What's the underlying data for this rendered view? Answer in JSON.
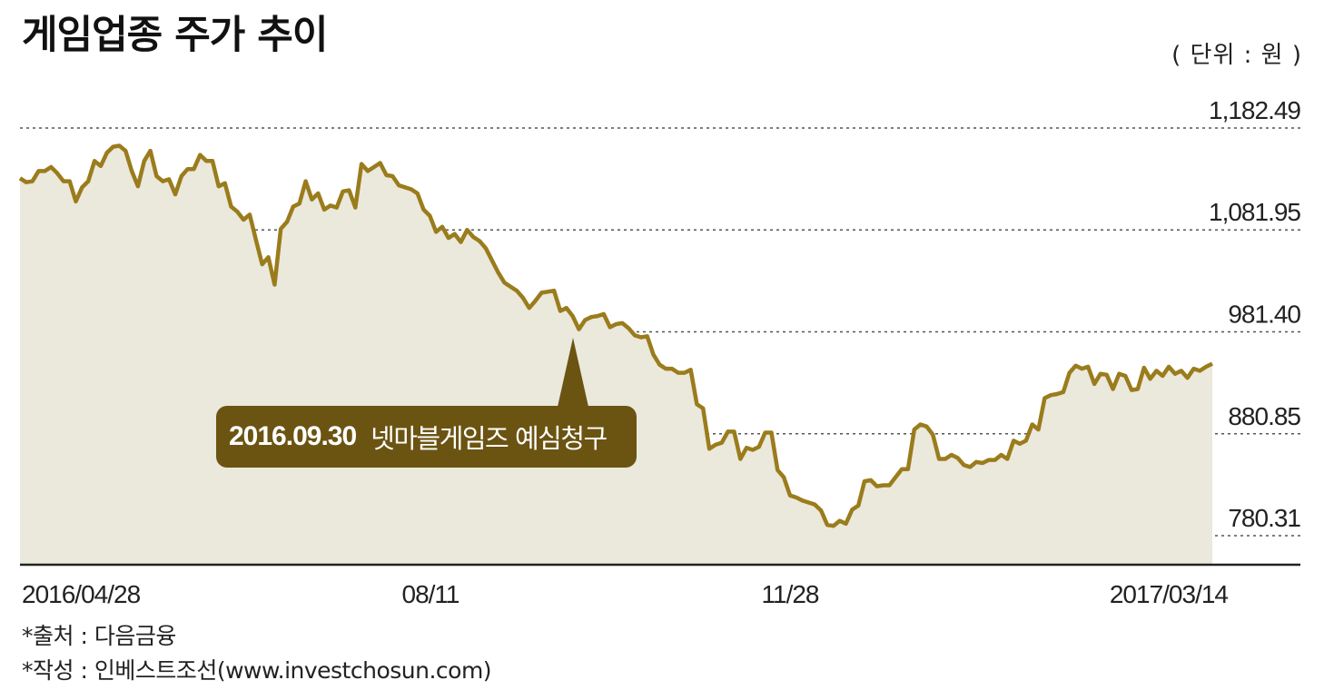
{
  "title": "게임업종 주가 추이",
  "unit": "( 단위 : 원 )",
  "annotation": {
    "date": "2016.09.30",
    "text": "넷마블게임즈 예심청구"
  },
  "footnotes": {
    "source": "*출처 : 다음금융",
    "author": "*작성 : 인베스트조선(www.investchosun.com)"
  },
  "colors": {
    "line": "#9a7c1c",
    "area": "#ebe8dc",
    "callout": "#6b5412"
  },
  "chart_data": {
    "type": "area",
    "ylim": [
      780.31,
      1182.49
    ],
    "yticks": [
      {
        "value": 1182.49,
        "label": "1,182.49"
      },
      {
        "value": 1081.95,
        "label": "1,081.95"
      },
      {
        "value": 981.4,
        "label": "981.40"
      },
      {
        "value": 880.85,
        "label": "880.85"
      },
      {
        "value": 780.31,
        "label": "780.31"
      }
    ],
    "xticks": [
      "2016/04/28",
      "08/11",
      "11/28",
      "2017/03/14"
    ],
    "x_start": "2016-04-28",
    "x_end": "2017-03-14",
    "grid": true,
    "series": [
      {
        "values": [
          1133,
          1129,
          1130,
          1140,
          1140,
          1144,
          1138,
          1130,
          1130,
          1110,
          1124,
          1130,
          1150,
          1145,
          1158,
          1164,
          1165,
          1160,
          1140,
          1125,
          1150,
          1160,
          1135,
          1130,
          1132,
          1117,
          1135,
          1142,
          1142,
          1156,
          1150,
          1150,
          1125,
          1128,
          1105,
          1100,
          1092,
          1097,
          1072,
          1048,
          1055,
          1028,
          1083,
          1090,
          1105,
          1108,
          1130,
          1112,
          1118,
          1102,
          1106,
          1104,
          1120,
          1121,
          1104,
          1147,
          1140,
          1144,
          1148,
          1136,
          1135,
          1126,
          1124,
          1122,
          1118,
          1102,
          1096,
          1080,
          1085,
          1074,
          1078,
          1070,
          1082,
          1075,
          1071,
          1064,
          1052,
          1040,
          1030,
          1026,
          1022,
          1015,
          1005,
          1012,
          1020,
          1021,
          1022,
          1002,
          1005,
          997,
          984,
          993,
          996,
          997,
          999,
          986,
          989,
          990,
          985,
          978,
          976,
          977,
          959,
          949,
          945,
          945,
          941,
          941,
          944,
          910,
          906,
          866,
          870,
          872,
          883,
          883,
          856,
          867,
          865,
          868,
          882,
          882,
          845,
          838,
          820,
          818,
          815,
          813,
          811,
          805,
          791,
          790,
          795,
          792,
          806,
          810,
          834,
          835,
          829,
          830,
          830,
          838,
          846,
          846,
          885,
          890,
          888,
          880,
          856,
          856,
          860,
          857,
          850,
          848,
          853,
          852,
          855,
          855,
          860,
          856,
          874,
          871,
          874,
          890,
          885,
          916,
          919,
          920,
          922,
          941,
          948,
          945,
          947,
          930,
          940,
          939,
          925,
          940,
          938,
          924,
          925,
          946,
          935,
          943,
          938,
          947,
          940,
          943,
          936,
          945,
          943,
          947,
          950
        ]
      }
    ]
  }
}
